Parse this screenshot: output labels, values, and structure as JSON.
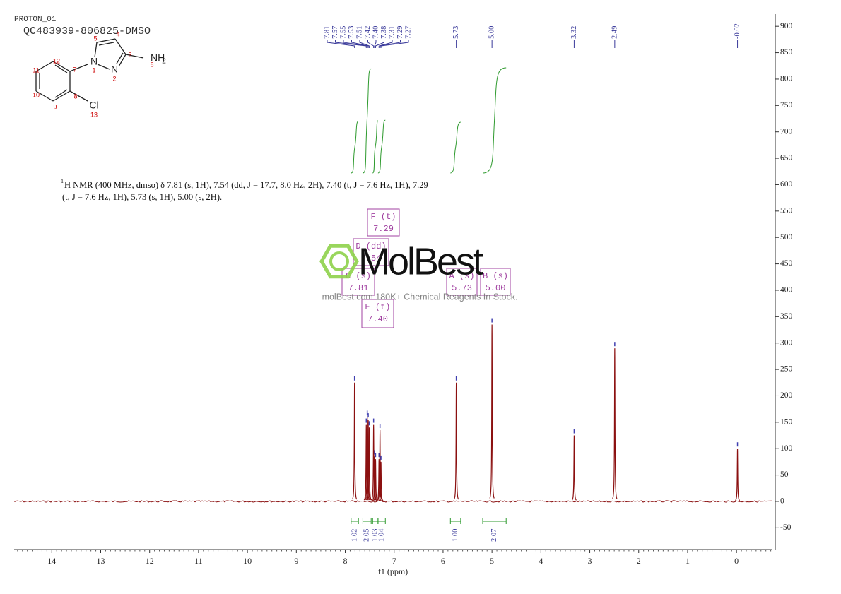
{
  "header": {
    "experiment": "PROTON_01",
    "sample": "QC483939-806825-DMSO"
  },
  "structure_labels": [
    "N",
    "1",
    "N",
    "2",
    "3",
    "4",
    "5",
    "NH",
    "2",
    "6",
    "7",
    "8",
    "9",
    "10",
    "11",
    "12",
    "Cl",
    "13"
  ],
  "description": {
    "superscript": "1",
    "lines": [
      "H NMR (400 MHz, dmso) δ 7.81 (s, 1H), 7.54 (dd, J = 17.7, 8.0 Hz, 2H), 7.40 (t, J = 7.6 Hz, 1H), 7.29",
      "(t, J = 7.6 Hz, 1H), 5.73 (s, 1H), 5.00 (s, 2H)."
    ]
  },
  "multiplets": [
    {
      "label": "F (t)",
      "shift": "7.29"
    },
    {
      "label": "D (dd)",
      "shift": "7.54"
    },
    {
      "label": "C (s)",
      "shift": "7.81"
    },
    {
      "label": "E (t)",
      "shift": "7.40"
    },
    {
      "label": "A (s)",
      "shift": "5.73"
    },
    {
      "label": "B (s)",
      "shift": "5.00"
    }
  ],
  "watermark": {
    "brand": "MolBest",
    "tagline": "molBest.com 180K+ Chemical Reagents In Stock."
  },
  "chart_data": {
    "type": "spectrum",
    "x_label": "f1  (ppm)",
    "xlim": [
      14.77,
      -0.72
    ],
    "xticks": [
      14,
      13,
      12,
      11,
      10,
      9,
      8,
      7,
      6,
      5,
      4,
      3,
      2,
      1,
      0
    ],
    "ylim": [
      -91,
      923
    ],
    "yticks": [
      -50,
      0,
      50,
      100,
      150,
      200,
      250,
      300,
      350,
      400,
      450,
      500,
      550,
      600,
      650,
      700,
      750,
      800,
      850,
      900
    ],
    "color": "#8b1010",
    "x": [
      7.81,
      7.57,
      7.55,
      7.53,
      7.51,
      7.42,
      7.4,
      7.38,
      7.31,
      7.29,
      7.27,
      5.73,
      5.0,
      3.32,
      2.49,
      -0.02
    ],
    "values": [
      225,
      145,
      160,
      155,
      140,
      145,
      85,
      80,
      80,
      135,
      75,
      225,
      335,
      125,
      290,
      100
    ],
    "peak_labels": [
      "7.81",
      "7.57",
      "7.55",
      "7.53",
      "7.51",
      "7.42",
      "7.40",
      "7.38",
      "7.31",
      "7.29",
      "7.27",
      "5.73",
      "5.00",
      "3.32",
      "2.49",
      "-0.02"
    ],
    "integrals": {
      "ranges": [
        [
          7.88,
          7.73
        ],
        [
          7.64,
          7.47
        ],
        [
          7.44,
          7.33
        ],
        [
          7.33,
          7.18
        ],
        [
          5.85,
          5.64
        ],
        [
          5.19,
          4.71
        ]
      ],
      "values": [
        1.02,
        2.05,
        1.03,
        1.04,
        1,
        2.07
      ],
      "value_labels": [
        "1.02",
        "2.05",
        "1.03",
        "1.04",
        "1.00",
        "2.07"
      ]
    }
  }
}
